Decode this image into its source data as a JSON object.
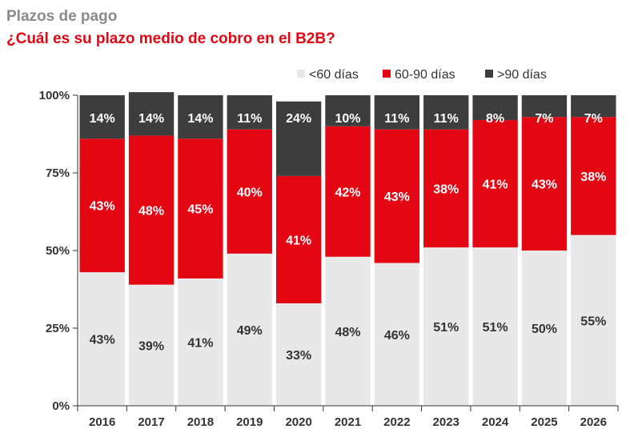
{
  "header": {
    "title": "Plazos de pago",
    "subtitle": "¿Cuál es su plazo medio de cobro en el B2B?"
  },
  "colors": {
    "lt60": "#e8e8e8",
    "d60_90": "#e30613",
    "gt90": "#3d3d3d",
    "axis": "#333333",
    "title": "#8a8a8a",
    "subtitle": "#e30613"
  },
  "chart_data": {
    "type": "bar",
    "stacked": true,
    "percent_stacked": true,
    "title": "Plazos de pago",
    "subtitle": "¿Cuál es su plazo medio de cobro en el B2B?",
    "xlabel": "",
    "ylabel": "",
    "ylim": [
      0,
      100
    ],
    "y_ticks": [
      "0%",
      "25%",
      "50%",
      "75%",
      "100%"
    ],
    "grid": false,
    "legend_position": "top-right",
    "categories": [
      "2016",
      "2017",
      "2018",
      "2019",
      "2020",
      "2021",
      "2022",
      "2023",
      "2024",
      "2025",
      "2026"
    ],
    "series": [
      {
        "name": "<60 días",
        "color": "#e8e8e8",
        "label_color": "#333333",
        "values": [
          43,
          39,
          41,
          49,
          33,
          48,
          46,
          51,
          51,
          50,
          55
        ],
        "labels": [
          "43%",
          "39%",
          "41%",
          "49%",
          "33%",
          "48%",
          "46%",
          "51%",
          "51%",
          "50%",
          "55%"
        ]
      },
      {
        "name": "60-90 días",
        "color": "#e30613",
        "label_color": "#ffffff",
        "values": [
          43,
          48,
          45,
          40,
          41,
          42,
          43,
          38,
          41,
          43,
          38
        ],
        "labels": [
          "43%",
          "48%",
          "45%",
          "40%",
          "41%",
          "42%",
          "43%",
          "38%",
          "41%",
          "43%",
          "38%"
        ]
      },
      {
        "name": ">90 días",
        "color": "#3d3d3d",
        "label_color": "#ffffff",
        "values": [
          14,
          14,
          14,
          11,
          24,
          10,
          11,
          11,
          8,
          7,
          7
        ],
        "labels": [
          "14%",
          "14%",
          "14%",
          "11%",
          "24%",
          "10%",
          "11%",
          "11%",
          "8%",
          "7%",
          "7%"
        ]
      }
    ]
  }
}
